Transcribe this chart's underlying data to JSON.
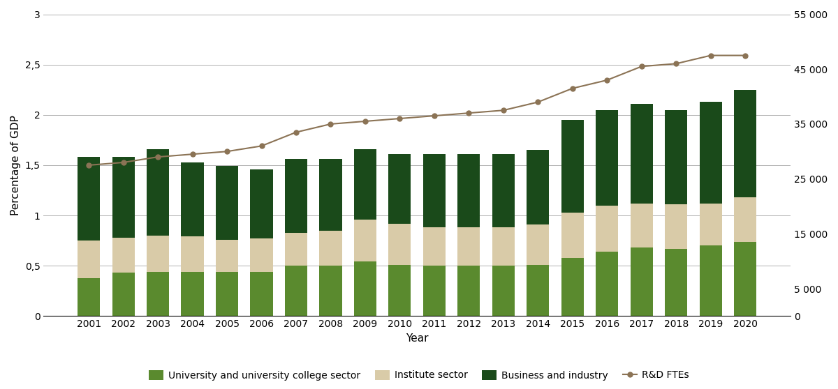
{
  "years": [
    2001,
    2002,
    2003,
    2004,
    2005,
    2006,
    2007,
    2008,
    2009,
    2010,
    2011,
    2012,
    2013,
    2014,
    2015,
    2016,
    2017,
    2018,
    2019,
    2020
  ],
  "university": [
    0.38,
    0.43,
    0.44,
    0.44,
    0.44,
    0.44,
    0.5,
    0.5,
    0.54,
    0.51,
    0.5,
    0.5,
    0.5,
    0.51,
    0.58,
    0.64,
    0.68,
    0.67,
    0.7,
    0.74
  ],
  "institute": [
    0.37,
    0.35,
    0.36,
    0.35,
    0.32,
    0.33,
    0.33,
    0.35,
    0.42,
    0.41,
    0.38,
    0.38,
    0.38,
    0.4,
    0.45,
    0.46,
    0.44,
    0.44,
    0.42,
    0.44
  ],
  "business": [
    0.83,
    0.8,
    0.86,
    0.74,
    0.73,
    0.69,
    0.73,
    0.71,
    0.7,
    0.69,
    0.73,
    0.73,
    0.73,
    0.74,
    0.92,
    0.95,
    0.99,
    0.94,
    1.01,
    1.07
  ],
  "fte": [
    27500,
    28000,
    29000,
    29500,
    30000,
    31000,
    33500,
    35000,
    35500,
    36000,
    36500,
    37000,
    37500,
    39000,
    41500,
    43000,
    45500,
    46000,
    47500,
    47500
  ],
  "university_color": "#5a8a2e",
  "institute_color": "#d9cba8",
  "business_color": "#1a4a1a",
  "fte_color": "#8b7355",
  "ylim_left": [
    0,
    3
  ],
  "ylim_right": [
    0,
    55000
  ],
  "yticks_left": [
    0,
    0.5,
    1.0,
    1.5,
    2.0,
    2.5,
    3.0
  ],
  "ytick_labels_left": [
    "0",
    "0,5",
    "1",
    "1,5",
    "2",
    "2,5",
    "3"
  ],
  "yticks_right": [
    0,
    5000,
    15000,
    25000,
    35000,
    45000,
    55000
  ],
  "ytick_labels_right": [
    "0",
    "5 000",
    "15 000",
    "25 000",
    "35 000",
    "45 000",
    "55 000"
  ],
  "xlabel": "Year",
  "ylabel_left": "Percentage of GDP",
  "legend_labels": [
    "University and university college sector",
    "Institute sector",
    "Business and industry",
    "R&D FTEs"
  ],
  "background_color": "#ffffff",
  "grid_color": "#b0b0b0"
}
